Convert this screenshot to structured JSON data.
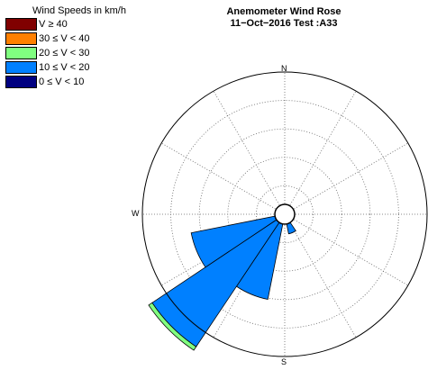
{
  "title_line1": "Anemometer Wind Rose",
  "title_line2": "11−Oct−2016  Test :A33",
  "legend": {
    "title": "Wind Speeds in km/h",
    "items": [
      {
        "label": "V ≥ 40",
        "color": "#800000"
      },
      {
        "label": "30 ≤ V < 40",
        "color": "#ff8000"
      },
      {
        "label": "20 ≤ V < 30",
        "color": "#80ff80"
      },
      {
        "label": "10 ≤ V < 20",
        "color": "#0080ff"
      },
      {
        "label": "0 ≤ V < 10",
        "color": "#000080"
      }
    ]
  },
  "directions": {
    "n": "N",
    "s": "S",
    "w": "W"
  },
  "colors": {
    "outline": "#000000",
    "grid": "#666666"
  },
  "chart_data": {
    "type": "wind rose",
    "r_max": 50,
    "rings": [
      10,
      20,
      30,
      40,
      50
    ],
    "spokes_deg": [
      0,
      30,
      60,
      90,
      120,
      150,
      180,
      210,
      240,
      270,
      300,
      330
    ],
    "sector_width_deg": 22.5,
    "speed_bins": [
      "0 ≤ V < 10",
      "10 ≤ V < 20",
      "20 ≤ V < 30",
      "30 ≤ V < 40",
      "V ≥ 40"
    ],
    "sectors": [
      {
        "direction_deg": 157.5,
        "values": [
          2.5,
          4.5,
          0,
          0,
          0
        ]
      },
      {
        "direction_deg": 180,
        "values": [
          3,
          0,
          0,
          0,
          0
        ]
      },
      {
        "direction_deg": 202.5,
        "values": [
          3.5,
          27,
          0,
          0,
          0
        ]
      },
      {
        "direction_deg": 225,
        "values": [
          3.5,
          52.5,
          1.5,
          0,
          0
        ]
      },
      {
        "direction_deg": 247.5,
        "values": [
          3.5,
          30,
          0,
          0,
          0
        ]
      },
      {
        "direction_deg": 270,
        "values": [
          2.5,
          0,
          0,
          0,
          0
        ]
      }
    ]
  }
}
